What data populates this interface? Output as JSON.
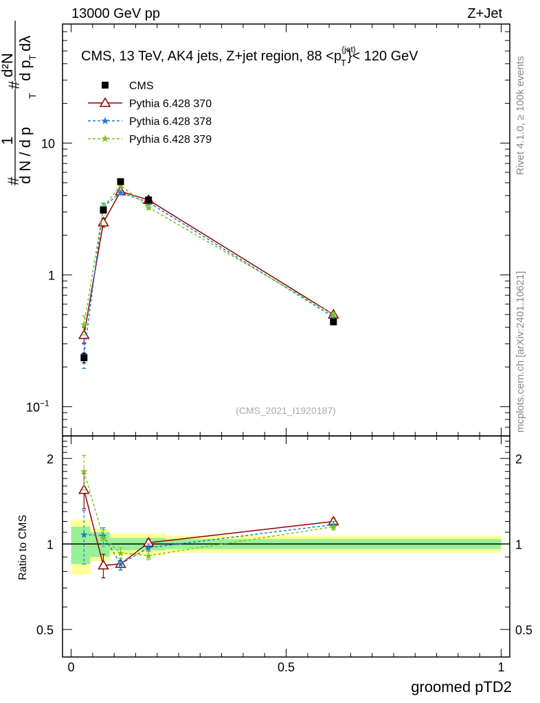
{
  "header": {
    "left": "13000 GeV pp",
    "right": "Z+Jet"
  },
  "side_labels": {
    "rivet": "Rivet 4.1.0, ≥ 100k events",
    "mcplots": "mcplots.cern.ch [arXiv:2401.10621]"
  },
  "main_plot": {
    "title": "CMS, 13 TeV, AK4 jets, Z+jet region, 88 <p",
    "title_sup": "{jet}",
    "title_sub": "T",
    "title_end": "}< 120 GeV",
    "watermark": "(CMS_2021_I1920187)",
    "ylabel_hash1": "#",
    "ylabel_num1": "1",
    "ylabel_den1": "d N / d p",
    "ylabel_sub1": "T",
    "ylabel_hash2": "#",
    "ylabel_num2": "d²N",
    "ylabel_den2": "d p",
    "ylabel_sub2": "T",
    "ylabel_end2": "dλ",
    "yticks": [
      {
        "value": 0.1,
        "base": "10",
        "exp": "−1"
      },
      {
        "value": 1,
        "label": "1"
      },
      {
        "value": 10,
        "label": "10"
      }
    ]
  },
  "ratio_plot": {
    "ylabel": "Ratio to CMS",
    "yticks": [
      {
        "value": 0.5,
        "label": "0.5"
      },
      {
        "value": 1,
        "label": "1"
      },
      {
        "value": 2,
        "label": "2"
      }
    ]
  },
  "x_axis": {
    "label": "groomed pTD2",
    "ticks": [
      {
        "value": 0,
        "label": "0"
      },
      {
        "value": 0.5,
        "label": "0.5"
      },
      {
        "value": 1,
        "label": "1"
      }
    ]
  },
  "legend": [
    {
      "id": "cms",
      "label": "CMS"
    },
    {
      "id": "p370",
      "label": "Pythia 6.428 370"
    },
    {
      "id": "p378",
      "label": "Pythia 6.428 378"
    },
    {
      "id": "p379",
      "label": "Pythia 6.428 379"
    }
  ],
  "chart_data": {
    "type": "scatter",
    "title": "CMS, 13 TeV, AK4 jets, Z+jet region, 88 <p_T^{jet}< 120 GeV",
    "xlabel": "groomed pTD2",
    "ylabel": "1/dN/dpT dN/dpT dlambda",
    "xlim": [
      -0.02,
      1.02
    ],
    "ylim": [
      0.06,
      80
    ],
    "yscale": "log",
    "ratio_ylim": [
      0.4,
      2.4
    ],
    "ratio_yscale": "log",
    "bins": [
      {
        "xlo": 0.0,
        "xhi": 0.045,
        "x": 0.03,
        "stat": 0.15,
        "tot": 0.22
      },
      {
        "xlo": 0.045,
        "xhi": 0.09,
        "x": 0.075,
        "stat": 0.1,
        "tot": 0.13
      },
      {
        "xlo": 0.09,
        "xhi": 0.14,
        "x": 0.115,
        "stat": 0.05,
        "tot": 0.09
      },
      {
        "xlo": 0.14,
        "xhi": 0.22,
        "x": 0.18,
        "stat": 0.05,
        "tot": 0.09
      },
      {
        "xlo": 0.22,
        "xhi": 1.0,
        "x": 0.61,
        "stat": 0.04,
        "tot": 0.07
      }
    ],
    "series": [
      {
        "id": "cms",
        "name": "CMS",
        "color": "#000000",
        "marker": "square",
        "x": [
          0.03,
          0.075,
          0.115,
          0.18,
          0.61
        ],
        "y": [
          0.235,
          3.1,
          5.1,
          3.7,
          0.44
        ],
        "yerr": [
          0.02,
          0.15,
          0.2,
          0.15,
          0.02
        ],
        "ratio": [
          1.0,
          1.0,
          1.0,
          1.0,
          1.0
        ]
      },
      {
        "id": "p370",
        "name": "Pythia 6.428 370",
        "color": "#8b0000",
        "marker": "triangle-open",
        "dash": "",
        "x": [
          0.03,
          0.075,
          0.115,
          0.18,
          0.61
        ],
        "y": [
          0.35,
          2.5,
          4.3,
          3.7,
          0.5
        ],
        "yerr": [
          0.05,
          0.2,
          0.15,
          0.12,
          0.02
        ],
        "ratio": [
          1.55,
          0.84,
          0.85,
          1.01,
          1.2
        ],
        "ratio_err": [
          0.22,
          0.08,
          0.04,
          0.03,
          0.03
        ]
      },
      {
        "id": "p378",
        "name": "Pythia 6.428 378",
        "color": "#1e78d2",
        "marker": "star",
        "dash": "4,3",
        "x": [
          0.03,
          0.075,
          0.115,
          0.18,
          0.61
        ],
        "y": [
          0.25,
          3.3,
          4.2,
          3.55,
          0.48
        ],
        "yerr": [
          0.055,
          0.2,
          0.15,
          0.12,
          0.02
        ],
        "ratio": [
          1.08,
          1.07,
          0.85,
          0.97,
          1.17
        ],
        "ratio_err": [
          0.23,
          0.07,
          0.04,
          0.03,
          0.03
        ]
      },
      {
        "id": "p379",
        "name": "Pythia 6.428 379",
        "color": "#7ac41c",
        "marker": "star",
        "dash": "4,3",
        "x": [
          0.03,
          0.075,
          0.115,
          0.18,
          0.61
        ],
        "y": [
          0.42,
          3.25,
          4.8,
          3.25,
          0.5
        ],
        "yerr": [
          0.07,
          0.2,
          0.2,
          0.12,
          0.02
        ],
        "ratio": [
          1.8,
          1.05,
          0.93,
          0.91,
          1.15
        ],
        "ratio_err": [
          0.25,
          0.07,
          0.04,
          0.03,
          0.03
        ]
      }
    ]
  }
}
